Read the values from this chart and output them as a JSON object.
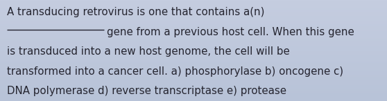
{
  "line1": "A transducing retrovirus is one that contains a(n)",
  "line2_right": "gene from a previous host cell. When this gene",
  "line3": "is transduced into a new host genome, the cell will be",
  "line4": "transformed into a cancer cell. a) phosphorylase b) oncogene c)",
  "line5": "DNA polymerase d) reverse transcriptase e) protease",
  "background_color_top": "#c5cde0",
  "background_color_bottom": "#b8c3d8",
  "text_color": "#252530",
  "font_size": 10.8,
  "fig_width": 5.58,
  "fig_height": 1.46,
  "dpi": 100
}
